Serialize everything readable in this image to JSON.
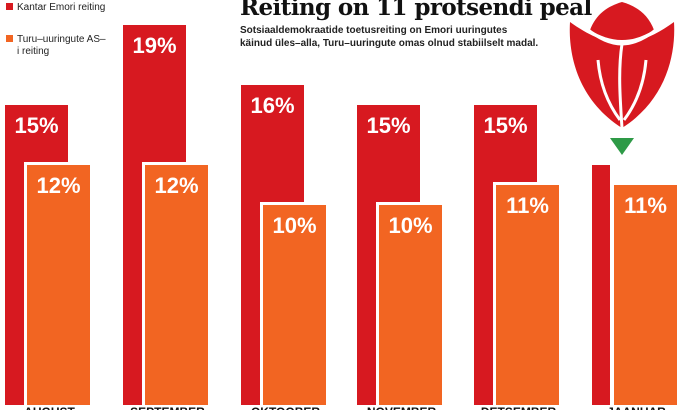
{
  "title": "Reiting on 11 protsendi peal",
  "subtitle": "Sotsiaaldemokraatide toetusreiting on Emori uuringutes käinud üles–alla, Turu–uuringute omas olnud stabiilselt madal.",
  "legend": [
    {
      "label": "Kantar Emori reiting",
      "color": "#d71920"
    },
    {
      "label": "Turu–uuringute AS–i reiting",
      "color": "#f26522"
    }
  ],
  "colors": {
    "kantar": "#d71920",
    "turu": "#f26522",
    "stem": "#2e9a47",
    "rose": "#d71920"
  },
  "logo_icon": "rose-icon",
  "chart_data": {
    "type": "bar",
    "title": "Reiting on 11 protsendi peal",
    "xlabel": "",
    "ylabel": "",
    "ylim": [
      0,
      20
    ],
    "categories": [
      "AUGUST",
      "SEPTEMBER",
      "OKTOOBER",
      "NOVEMBER",
      "DETSEMBER",
      "JAANUAR"
    ],
    "series": [
      {
        "name": "Kantar Emori reiting",
        "values": [
          15,
          19,
          16,
          15,
          15,
          null
        ],
        "labels": [
          "15%",
          "19%",
          "16%",
          "15%",
          "15%",
          ""
        ]
      },
      {
        "name": "Turu–uuringute AS–i reiting",
        "values": [
          12,
          12,
          10,
          10,
          11,
          11
        ],
        "labels": [
          "12%",
          "12%",
          "10%",
          "10%",
          "11%",
          "11%"
        ]
      }
    ]
  }
}
